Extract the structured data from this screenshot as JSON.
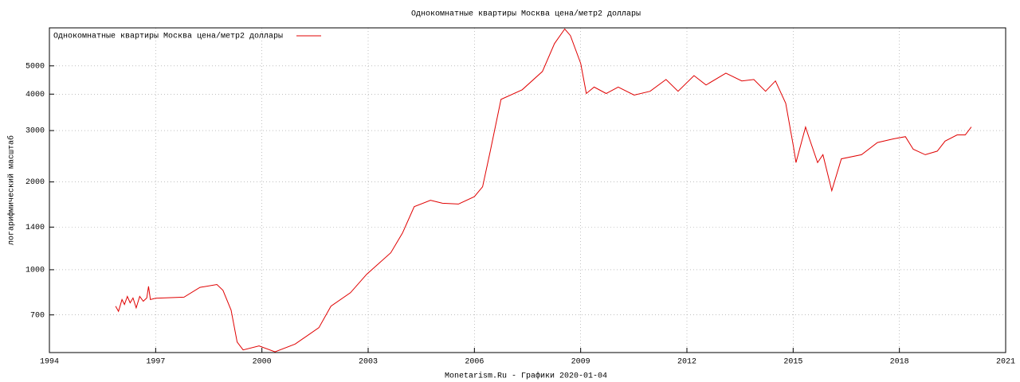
{
  "chart_data": {
    "type": "line",
    "title": "Однокомнатные квартиры Москва цена/метр2 доллары",
    "ylabel": "логарифмический масштаб",
    "footer": "Monetarism.Ru - Графики  2020-01-04",
    "yscale": "log",
    "grid": true,
    "legend": "top-left",
    "xlim": [
      1994,
      2021
    ],
    "xticks": [
      1994,
      1997,
      2000,
      2003,
      2006,
      2009,
      2012,
      2015,
      2018,
      2021
    ],
    "ylim": [
      520,
      6750
    ],
    "yticks": [
      700,
      1000,
      1400,
      2000,
      3000,
      4000,
      5000
    ],
    "series": [
      {
        "name": "Однокомнатные квартиры Москва цена/метр2 доллары",
        "color": "#e00000",
        "x": [
          1995.87,
          1995.95,
          1996.05,
          1996.12,
          1996.2,
          1996.28,
          1996.36,
          1996.45,
          1996.55,
          1996.65,
          1996.75,
          1996.8,
          1996.85,
          1997.0,
          1997.8,
          1998.25,
          1998.73,
          1998.9,
          1999.13,
          1999.3,
          1999.47,
          1999.92,
          2000.37,
          2000.94,
          2001.61,
          2001.95,
          2002.5,
          2002.96,
          2003.64,
          2003.97,
          2004.3,
          2004.76,
          2005.1,
          2005.55,
          2006.0,
          2006.23,
          2006.45,
          2006.75,
          2007.35,
          2007.92,
          2008.26,
          2008.55,
          2008.71,
          2009.0,
          2009.16,
          2009.38,
          2009.72,
          2010.06,
          2010.51,
          2010.96,
          2011.41,
          2011.75,
          2012.2,
          2012.54,
          2013.1,
          2013.55,
          2013.89,
          2014.22,
          2014.5,
          2014.79,
          2015.01,
          2015.08,
          2015.35,
          2015.46,
          2015.69,
          2015.84,
          2016.09,
          2016.36,
          2016.93,
          2017.38,
          2017.83,
          2018.17,
          2018.39,
          2018.73,
          2019.07,
          2019.29,
          2019.63,
          2019.86,
          2020.03
        ],
        "values": [
          750,
          720,
          790,
          760,
          810,
          770,
          800,
          740,
          810,
          780,
          800,
          877,
          790,
          798,
          805,
          870,
          890,
          850,
          727,
          565,
          531,
          548,
          523,
          556,
          633,
          750,
          834,
          965,
          1143,
          1336,
          1645,
          1730,
          1690,
          1680,
          1780,
          1925,
          2555,
          3838,
          4140,
          4785,
          5960,
          6690,
          6350,
          5100,
          4020,
          4230,
          4020,
          4230,
          3970,
          4090,
          4490,
          4090,
          4630,
          4300,
          4720,
          4440,
          4490,
          4090,
          4440,
          3720,
          2635,
          2330,
          3085,
          2810,
          2330,
          2480,
          1866,
          2400,
          2480,
          2730,
          2810,
          2860,
          2590,
          2480,
          2550,
          2760,
          2900,
          2900,
          3085
        ]
      }
    ]
  }
}
